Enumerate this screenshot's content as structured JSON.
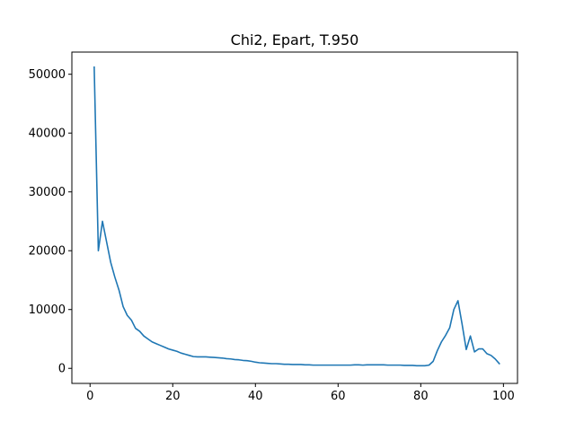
{
  "chart_data": {
    "type": "line",
    "title": "Chi2, Epart, T.950",
    "xlabel": "",
    "ylabel": "",
    "xlim": [
      -4.4,
      103.4
    ],
    "ylim": [
      -2560,
      53770
    ],
    "xticks": [
      0,
      20,
      40,
      60,
      80,
      100
    ],
    "yticks": [
      0,
      10000,
      20000,
      30000,
      40000,
      50000
    ],
    "grid": false,
    "line_color": "#1f77b4",
    "series": [
      {
        "x": [
          1,
          2,
          3,
          4,
          5,
          6,
          7,
          8,
          9,
          10,
          11,
          12,
          13,
          14,
          15,
          16,
          17,
          18,
          19,
          20,
          21,
          22,
          23,
          24,
          25,
          26,
          27,
          28,
          29,
          30,
          31,
          32,
          33,
          34,
          35,
          36,
          37,
          38,
          39,
          40,
          41,
          42,
          43,
          44,
          45,
          46,
          47,
          48,
          49,
          50,
          51,
          52,
          53,
          54,
          55,
          56,
          57,
          58,
          59,
          60,
          61,
          62,
          63,
          64,
          65,
          66,
          67,
          68,
          69,
          70,
          71,
          72,
          73,
          74,
          75,
          76,
          77,
          78,
          79,
          80,
          81,
          82,
          83,
          84,
          85,
          86,
          87,
          88,
          89,
          90,
          91,
          92,
          93,
          94,
          95,
          96,
          97,
          98,
          99
        ],
        "values": [
          51200,
          20000,
          25000,
          21500,
          18000,
          15500,
          13300,
          10500,
          9000,
          8200,
          6800,
          6300,
          5500,
          5000,
          4500,
          4200,
          3900,
          3600,
          3300,
          3100,
          2900,
          2600,
          2400,
          2200,
          2000,
          1950,
          1950,
          1950,
          1900,
          1850,
          1800,
          1750,
          1650,
          1600,
          1500,
          1450,
          1350,
          1300,
          1200,
          1050,
          950,
          900,
          850,
          800,
          800,
          750,
          700,
          700,
          650,
          650,
          650,
          600,
          600,
          550,
          550,
          550,
          550,
          550,
          550,
          550,
          550,
          550,
          550,
          600,
          600,
          550,
          600,
          600,
          600,
          600,
          600,
          550,
          550,
          550,
          550,
          500,
          500,
          500,
          450,
          450,
          450,
          550,
          1200,
          3000,
          4500,
          5600,
          6900,
          10000,
          11500,
          7500,
          3200,
          5500,
          2800,
          3300,
          3300,
          2500,
          2200,
          1600,
          800
        ]
      }
    ]
  }
}
